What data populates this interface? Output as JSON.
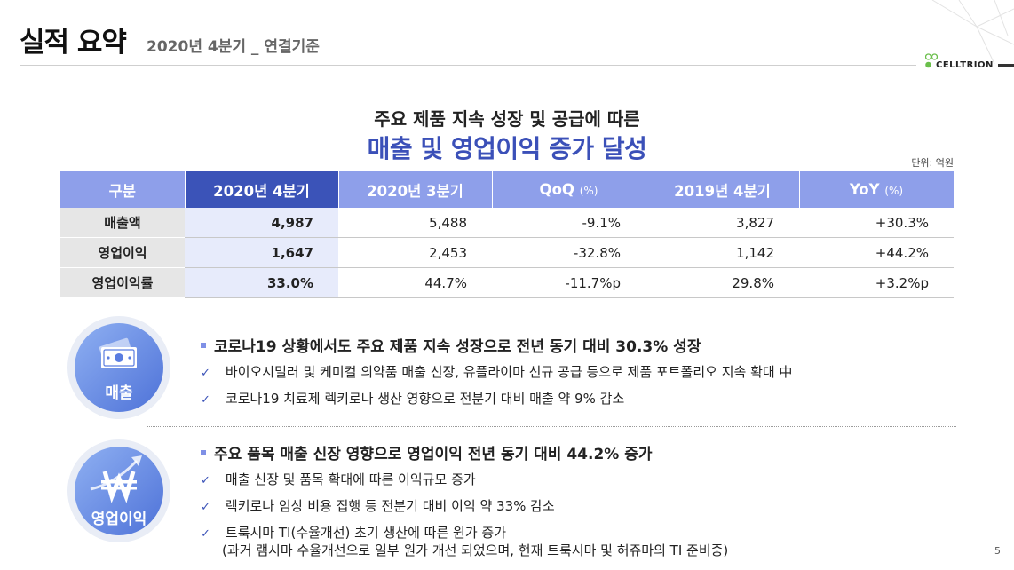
{
  "header": {
    "title": "실적 요약",
    "subtitle": "2020년 4분기 _ 연결기준",
    "logo_text": "CELLTRION"
  },
  "headline": {
    "line1": "주요 제품 지속 성장 및 공급에 따른",
    "line2": "매출 및 영업이익 증가 달성"
  },
  "unit": "단위: 억원",
  "table": {
    "columns": [
      {
        "label": "구분",
        "suffix": ""
      },
      {
        "label": "2020년 4분기",
        "suffix": ""
      },
      {
        "label": "2020년 3분기",
        "suffix": ""
      },
      {
        "label": "QoQ",
        "suffix": "(%)"
      },
      {
        "label": "2019년 4분기",
        "suffix": ""
      },
      {
        "label": "YoY",
        "suffix": "(%)"
      }
    ],
    "rows": [
      {
        "label": "매출액",
        "values": [
          "4,987",
          "5,488",
          "-9.1%",
          "3,827",
          "+30.3%"
        ]
      },
      {
        "label": "영업이익",
        "values": [
          "1,647",
          "2,453",
          "-32.8%",
          "1,142",
          "+44.2%"
        ]
      },
      {
        "label": "영업이익률",
        "values": [
          "33.0%",
          "44.7%",
          "-11.7%p",
          "29.8%",
          "+3.2%p"
        ]
      }
    ]
  },
  "sections": [
    {
      "badge": "매출",
      "icon": "money-icon",
      "main": "코로나19 상황에서도 주요 제품 지속 성장으로 전년 동기 대비 30.3% 성장",
      "subs": [
        "바이오시밀러 및 케미컬 의약품 매출 신장, 유플라이마 신규 공급 등으로 제품 포트폴리오 지속 확대 中",
        "코로나19 치료제 렉키로나 생산 영향으로 전분기 대비 매출 약 9% 감소"
      ]
    },
    {
      "badge": "영업이익",
      "icon": "won-growth-icon",
      "main": "주요 품목 매출 신장 영향으로 영업이익 전년 동기 대비 44.2% 증가",
      "subs": [
        "매출 신장 및 품목 확대에 따른 이익규모 증가",
        "렉키로나 임상 비용 집행 등 전분기 대비 이익 약 33% 감소",
        "트룩시마 TI(수율개선) 초기 생산에 따른 원가 증가",
        "(과거 램시마 수율개선으로 일부 원가 개선 되었으며, 현재 트룩시마 및 허쥬마의 TI 준비중)"
      ]
    }
  ],
  "check_glyph": "✓",
  "page_number": "5"
}
